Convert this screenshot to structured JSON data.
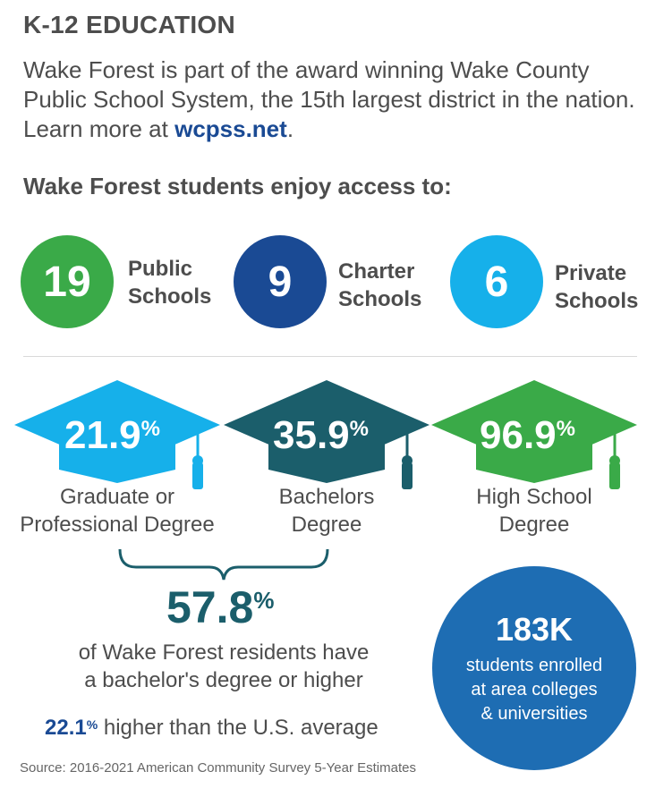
{
  "header": {
    "title": "K-12 EDUCATION",
    "intro_text": "Wake Forest is part of the award winning Wake County Public School System, the 15th largest district in the nation. Learn more at ",
    "intro_link": "wcpss.net",
    "intro_end": ".",
    "access_heading": "Wake Forest students enjoy access to:"
  },
  "schools": [
    {
      "count": "19",
      "line1": "Public",
      "line2": "Schools",
      "color": "#3aaa48"
    },
    {
      "count": "9",
      "line1": "Charter",
      "line2": "Schools",
      "color": "#1a4a94"
    },
    {
      "count": "6",
      "line1": "Private",
      "line2": "Schools",
      "color": "#16b0ea"
    }
  ],
  "degrees": [
    {
      "value": "21.9",
      "unit": "%",
      "line1": "Graduate or",
      "line2": "Professional Degree",
      "color": "#16b0ea",
      "icon": "graduation-cap-icon"
    },
    {
      "value": "35.9",
      "unit": "%",
      "line1": "Bachelors",
      "line2": "Degree",
      "color": "#1b5e6b",
      "icon": "graduation-cap-icon"
    },
    {
      "value": "96.9",
      "unit": "%",
      "line1": "High School",
      "line2": "Degree",
      "color": "#3aaa48",
      "icon": "graduation-cap-icon"
    }
  ],
  "summary": {
    "value": "57.8",
    "unit": "%",
    "line1": "of Wake Forest residents have",
    "line2": "a bachelor's degree or higher",
    "higher_value": "22.1",
    "higher_unit": "%",
    "higher_text": " higher than the U.S. average"
  },
  "enrollment": {
    "value": "183K",
    "line1": "students enrolled",
    "line2": "at area colleges",
    "line3": "& universities",
    "color": "#1e6db3"
  },
  "source": "Source: 2016-2021 American Community Survey 5-Year Estimates"
}
